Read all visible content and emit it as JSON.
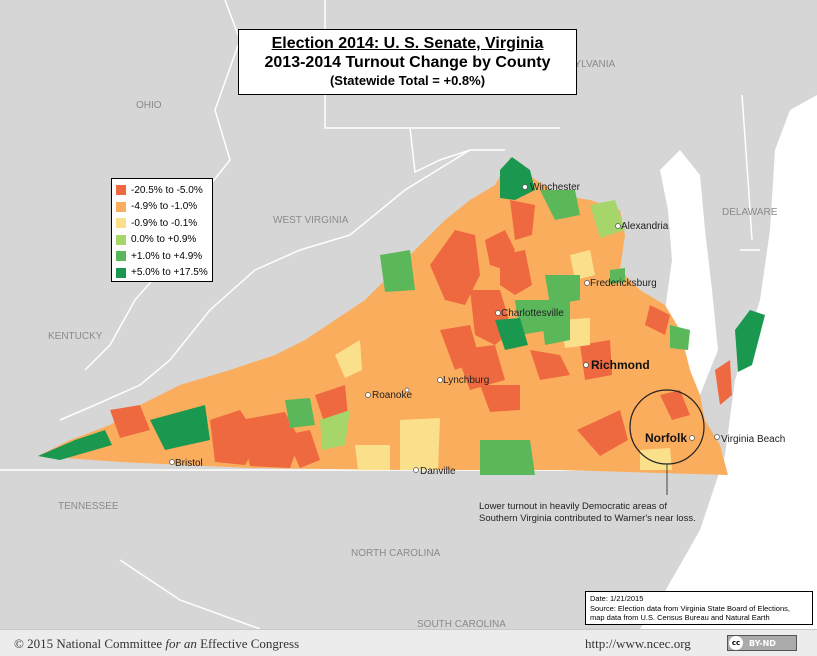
{
  "title": {
    "line1": "Election 2014: U. S. Senate, Virginia",
    "line2": "2013-2014 Turnout Change by County",
    "line3": "(Statewide Total = +0.8%)"
  },
  "legend": [
    {
      "label": "-20.5% to -5.0%",
      "color": "#ef6940"
    },
    {
      "label": "-4.9% to -1.0%",
      "color": "#fbad5e"
    },
    {
      "label": "-0.9% to -0.1%",
      "color": "#fbe08c"
    },
    {
      "label": "0.0% to +0.9%",
      "color": "#a6d569"
    },
    {
      "label": "+1.0% to +4.9%",
      "color": "#5ab75a"
    },
    {
      "label": "+5.0% to +17.5%",
      "color": "#1a9850"
    }
  ],
  "states": {
    "ohio": "OHIO",
    "pennsylvania": "PENNSYLVANIA",
    "west_virginia": "WEST VIRGINIA",
    "delaware": "DELAWARE",
    "kentucky": "KENTUCKY",
    "tennessee": "TENNESSEE",
    "north_carolina": "NORTH CAROLINA",
    "south_carolina": "SOUTH CAROLINA"
  },
  "cities": {
    "winchester": "Winchester",
    "alexandria": "Alexandria",
    "fredericksburg": "Fredericksburg",
    "charlottesville": "Charlottesville",
    "richmond": "Richmond",
    "lynchburg": "Lynchburg",
    "roanoke": "Roanoke",
    "norfolk": "Norfolk",
    "virginia_beach": "Virginia Beach",
    "bristol": "Bristol",
    "danville": "Danville"
  },
  "annotation": {
    "line1": "Lower turnout in heavily Democratic areas of",
    "line2": "Southern Virginia contributed to Warner's near loss."
  },
  "meta": {
    "date": "Date: 1/21/2015",
    "source1": "Source: Election data from Virginia State Board of Elections,",
    "source2": "map data from U.S. Census Bureau and Natural Earth"
  },
  "footer": {
    "copyright_pre": "© 2015 National Committee ",
    "copyright_em": "for an",
    "copyright_post": " Effective Congress",
    "url": "http://www.ncec.org",
    "license": "BY-ND",
    "license_symbol": "cc"
  },
  "colors": {
    "neighbor_fill": "#d6d6d6",
    "water": "#ffffff",
    "border": "#ffffff"
  }
}
